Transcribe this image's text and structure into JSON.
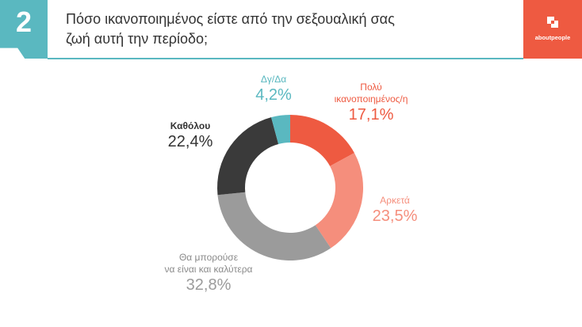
{
  "header": {
    "number": "2",
    "title_line1": "Πόσο ικανοποιημένος είστε από την σεξουαλική σας",
    "title_line2": "ζωή αυτή την περίοδο;",
    "brand": "aboutpeople",
    "accent_color": "#5ab8c0",
    "brand_color": "#ee5a41"
  },
  "chart_data": {
    "type": "pie",
    "donut": true,
    "slices": [
      {
        "label_lines": [
          "Πολύ",
          "ικανοποιημένος/η"
        ],
        "value": 17.1,
        "value_text": "17,1%",
        "color": "#ee5a41"
      },
      {
        "label_lines": [
          "Αρκετά"
        ],
        "value": 23.5,
        "value_text": "23,5%",
        "color": "#f58e7c"
      },
      {
        "label_lines": [
          "Θα μπορούσε",
          "να είναι και καλύτερα"
        ],
        "value": 32.8,
        "value_text": "32,8%",
        "color": "#9b9b9b"
      },
      {
        "label_lines": [
          "Καθόλου"
        ],
        "value": 22.4,
        "value_text": "22,4%",
        "color": "#3a3a3a"
      },
      {
        "label_lines": [
          "Δγ/Δα"
        ],
        "value": 4.2,
        "value_text": "4,2%",
        "color": "#5ab8c0"
      }
    ]
  }
}
